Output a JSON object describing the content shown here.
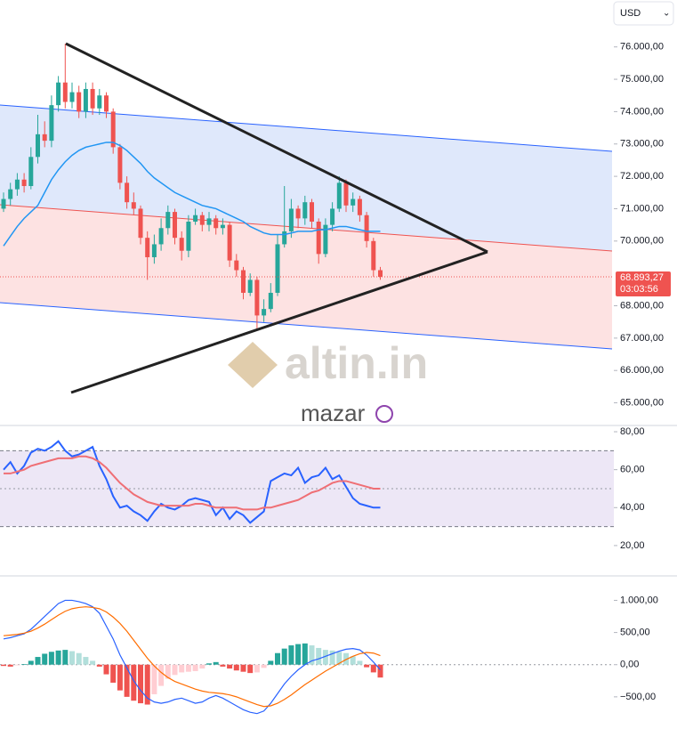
{
  "currency": "USD",
  "watermark": {
    "brand": "altin.in",
    "sub": "mazar"
  },
  "last_price": {
    "value": 68893.27,
    "label": "68.893,27"
  },
  "countdown": "03:03:56",
  "chart_data": [
    {
      "type": "candlestick",
      "up_color": "#26a69a",
      "down_color": "#ef5350",
      "open": [
        71000,
        71300,
        71600,
        71900,
        71700,
        72600,
        73300,
        73100,
        74200,
        74900,
        74300,
        74600,
        74000,
        74700,
        74100,
        74500,
        74000,
        72900,
        71800,
        71200,
        71000,
        70100,
        69500,
        69900,
        70400,
        70900,
        70100,
        69700,
        70600,
        70800,
        70500,
        70700,
        70400,
        70500,
        69400,
        69100,
        68400,
        68800,
        67700,
        67900,
        68400,
        69900,
        70300,
        71000,
        70700,
        71200,
        70600,
        69600,
        70500,
        71000,
        71800,
        71100,
        71300,
        70800,
        70000,
        69100
      ],
      "high": [
        71500,
        71800,
        72100,
        72100,
        72900,
        73900,
        73700,
        74500,
        75100,
        76100,
        74900,
        74800,
        74900,
        74900,
        74700,
        74600,
        74100,
        73000,
        72000,
        71500,
        71100,
        70300,
        70200,
        70700,
        71100,
        71000,
        70300,
        70800,
        71000,
        70900,
        70900,
        70800,
        70700,
        70600,
        69600,
        69200,
        69000,
        68900,
        68200,
        68700,
        70200,
        71700,
        71300,
        71100,
        71400,
        71300,
        70700,
        70700,
        71200,
        72000,
        71900,
        71500,
        71400,
        70900,
        70100,
        69200
      ],
      "low": [
        70900,
        71100,
        71400,
        71500,
        71600,
        72400,
        72900,
        72900,
        74000,
        74100,
        74100,
        73800,
        73800,
        73900,
        73900,
        73800,
        72700,
        71600,
        71000,
        70800,
        69900,
        68800,
        69300,
        69700,
        70200,
        69900,
        69400,
        69500,
        70500,
        70300,
        70300,
        70200,
        70200,
        69200,
        68900,
        68200,
        68300,
        67300,
        67500,
        67800,
        68300,
        69800,
        70100,
        70400,
        70500,
        70400,
        69300,
        69500,
        70300,
        70900,
        70900,
        70900,
        70600,
        69800,
        68900,
        68800
      ],
      "close": [
        71300,
        71600,
        71900,
        71700,
        72600,
        73300,
        73100,
        74200,
        74900,
        74300,
        74600,
        74000,
        74700,
        74100,
        74500,
        74000,
        72900,
        71800,
        71200,
        71000,
        70100,
        69500,
        69900,
        70400,
        70900,
        70100,
        69700,
        70600,
        70800,
        70500,
        70700,
        70400,
        70500,
        69400,
        69100,
        68400,
        68800,
        67700,
        67900,
        68400,
        69900,
        70300,
        71000,
        70700,
        71200,
        70600,
        69600,
        70500,
        71000,
        71800,
        71100,
        71300,
        70800,
        70000,
        69100,
        68893.27
      ],
      "ma": {
        "color": "#2196f3",
        "values": [
          69850,
          70150,
          70450,
          70700,
          70900,
          71100,
          71500,
          71900,
          72200,
          72450,
          72650,
          72800,
          72900,
          72950,
          73000,
          73050,
          73050,
          72950,
          72800,
          72600,
          72400,
          72150,
          71950,
          71800,
          71650,
          71500,
          71400,
          71300,
          71200,
          71100,
          71050,
          71000,
          70900,
          70800,
          70700,
          70600,
          70450,
          70350,
          70250,
          70200,
          70200,
          70200,
          70250,
          70300,
          70300,
          70300,
          70350,
          70350,
          70400,
          70450,
          70450,
          70400,
          70350,
          70300,
          70300,
          70300
        ]
      },
      "ylim": [
        64300,
        77450
      ],
      "yticks": [
        {
          "value": 65000,
          "label": "65.000,00"
        },
        {
          "value": 66000,
          "label": "66.000,00"
        },
        {
          "value": 67000,
          "label": "67.000,00"
        },
        {
          "value": 68000,
          "label": "68.000,00"
        },
        {
          "value": 70000,
          "label": "70.000,00"
        },
        {
          "value": 71000,
          "label": "71.000,00"
        },
        {
          "value": 72000,
          "label": "72.000,00"
        },
        {
          "value": 73000,
          "label": "73.000,00"
        },
        {
          "value": 74000,
          "label": "74.000,00"
        },
        {
          "value": 75000,
          "label": "75.000,00"
        },
        {
          "value": 76000,
          "label": "76.000,00"
        }
      ]
    },
    {
      "type": "line",
      "series": [
        {
          "color": "#2962ff",
          "values": [
            60,
            64,
            58,
            62,
            69,
            71,
            70,
            72,
            75,
            70,
            67,
            68,
            70,
            72,
            62,
            55,
            46,
            40,
            41,
            38,
            36,
            33,
            38,
            42,
            40,
            39,
            41,
            44,
            45,
            44,
            43,
            36,
            40,
            34,
            38,
            36,
            32,
            35,
            38,
            54,
            56,
            58,
            57,
            61,
            53,
            56,
            57,
            61,
            55,
            57,
            51,
            45,
            42,
            41,
            40,
            40
          ]
        },
        {
          "color": "#ef6f75",
          "values": [
            58,
            58,
            59,
            60,
            62,
            63,
            64,
            65,
            66,
            66,
            66,
            67,
            67,
            66,
            64,
            61,
            57,
            53,
            50,
            47,
            45,
            43,
            42,
            41,
            41,
            41,
            41,
            41,
            42,
            42,
            41,
            40,
            40,
            40,
            40,
            39,
            39,
            39,
            40,
            40,
            41,
            42,
            43,
            44,
            46,
            48,
            49,
            51,
            53,
            54,
            54,
            53,
            52,
            51,
            50,
            50
          ]
        }
      ],
      "band": [
        30,
        70
      ],
      "midline": 50,
      "band_color": "#ede7f6",
      "ylim": [
        4,
        83.3
      ],
      "yticks": [
        {
          "value": 20,
          "label": "20,00"
        },
        {
          "value": 40,
          "label": "40,00"
        },
        {
          "value": 60,
          "label": "60,00"
        },
        {
          "value": 80,
          "label": "80,00"
        }
      ]
    },
    {
      "type": "macd",
      "histogram": [
        -20,
        -30,
        -10,
        10,
        60,
        120,
        170,
        200,
        220,
        230,
        210,
        180,
        120,
        60,
        -30,
        -150,
        -280,
        -400,
        -500,
        -560,
        -600,
        -620,
        -460,
        -330,
        -220,
        -160,
        -120,
        -110,
        -100,
        -60,
        20,
        40,
        -30,
        -60,
        -90,
        -110,
        -130,
        -120,
        -50,
        60,
        180,
        250,
        300,
        320,
        330,
        300,
        260,
        230,
        220,
        200,
        180,
        130,
        60,
        -40,
        -120,
        -200
      ],
      "histogram_colors": [
        "#26a69a",
        "#b2dfdb",
        "#ffcdd2",
        "#ef5350"
      ],
      "series": [
        {
          "color": "#2962ff",
          "values": [
            400,
            420,
            450,
            480,
            550,
            650,
            750,
            850,
            950,
            1000,
            1000,
            980,
            950,
            900,
            800,
            600,
            400,
            150,
            -50,
            -250,
            -400,
            -520,
            -580,
            -600,
            -580,
            -540,
            -520,
            -560,
            -600,
            -580,
            -520,
            -480,
            -520,
            -580,
            -640,
            -700,
            -740,
            -760,
            -720,
            -600,
            -450,
            -300,
            -180,
            -80,
            0,
            60,
            90,
            130,
            170,
            210,
            240,
            250,
            230,
            150,
            40,
            -80
          ]
        },
        {
          "color": "#ff6d00",
          "values": [
            450,
            460,
            470,
            490,
            520,
            570,
            630,
            700,
            770,
            830,
            870,
            890,
            900,
            890,
            870,
            820,
            740,
            640,
            520,
            380,
            240,
            100,
            -20,
            -120,
            -200,
            -260,
            -300,
            -340,
            -380,
            -410,
            -430,
            -440,
            -450,
            -470,
            -500,
            -540,
            -580,
            -620,
            -650,
            -640,
            -600,
            -540,
            -470,
            -390,
            -310,
            -240,
            -170,
            -100,
            -40,
            20,
            80,
            130,
            170,
            190,
            180,
            140
          ]
        }
      ],
      "zero_line": 0,
      "ylim": [
        -1000,
        1380
      ],
      "yticks": [
        {
          "value": -500,
          "label": "−500,00"
        },
        {
          "value": 0,
          "label": "0,00"
        },
        {
          "value": 500,
          "label": "500,00"
        },
        {
          "value": 1000,
          "label": "1.000,00"
        }
      ]
    }
  ]
}
